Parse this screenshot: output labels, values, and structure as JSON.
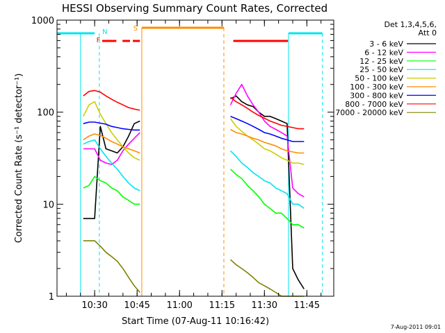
{
  "chart_data": {
    "type": "line",
    "title": "HESSI Observing Summary Count Rates, Corrected",
    "xlabel": "Start Time (07-Aug-11 10:16:42)",
    "ylabel": "Corrected Count Rate (s⁻¹ detector⁻¹)",
    "y_scale": "log",
    "ylim": [
      1,
      1000
    ],
    "xlim": [
      "10:16:42",
      "11:54:30"
    ],
    "x_ticks": [
      "10:30",
      "10:45",
      "11:00",
      "11:15",
      "11:30",
      "11:45"
    ],
    "y_ticks": [
      "1",
      "10",
      "100",
      "1000"
    ],
    "footer": "7-Aug-2011 09:01",
    "legend": {
      "header": [
        "Det 1,3,4,5,6,",
        "Att 0"
      ],
      "position": "right"
    },
    "flags": [
      {
        "label": "N",
        "color": "#00e5ee"
      },
      {
        "label": "F",
        "color": "#ff0000"
      },
      {
        "label": "S",
        "color": "#ff8c00"
      }
    ],
    "series": [
      {
        "name": "3 - 6 keV",
        "color": "#000000",
        "x": [
          "10:26",
          "10:28",
          "10:30",
          "10:32",
          "10:34",
          "10:36",
          "10:38",
          "10:40",
          "10:42",
          "10:44",
          "10:46",
          "11:18",
          "11:20",
          "11:22",
          "11:24",
          "11:26",
          "11:28",
          "11:30",
          "11:32",
          "11:34",
          "11:36",
          "11:38",
          "11:40",
          "11:42",
          "11:44"
        ],
        "y": [
          7,
          7,
          7,
          70,
          40,
          38,
          36,
          42,
          55,
          75,
          80,
          140,
          150,
          130,
          120,
          115,
          100,
          90,
          90,
          85,
          80,
          75,
          2,
          1.5,
          1.2
        ]
      },
      {
        "name": "6 - 12 keV",
        "color": "#ff00ff",
        "x": [
          "10:26",
          "10:28",
          "10:30",
          "10:32",
          "10:34",
          "10:36",
          "10:38",
          "10:40",
          "10:42",
          "10:44",
          "10:46",
          "11:18",
          "11:20",
          "11:22",
          "11:24",
          "11:26",
          "11:28",
          "11:30",
          "11:32",
          "11:34",
          "11:36",
          "11:38",
          "11:40",
          "11:42",
          "11:44"
        ],
        "y": [
          40,
          40,
          40,
          30,
          28,
          27,
          30,
          38,
          45,
          52,
          60,
          120,
          160,
          200,
          150,
          120,
          100,
          80,
          70,
          65,
          60,
          55,
          15,
          13,
          12
        ]
      },
      {
        "name": "12 - 25 keV",
        "color": "#00ff00",
        "x": [
          "10:26",
          "10:28",
          "10:30",
          "10:32",
          "10:34",
          "10:36",
          "10:38",
          "10:40",
          "10:42",
          "10:44",
          "10:46",
          "11:18",
          "11:20",
          "11:22",
          "11:24",
          "11:26",
          "11:28",
          "11:30",
          "11:32",
          "11:34",
          "11:36",
          "11:38",
          "11:40",
          "11:42",
          "11:44"
        ],
        "y": [
          15,
          16,
          20,
          18,
          17,
          15,
          14,
          12,
          11,
          10,
          10,
          24,
          21,
          19,
          16,
          14,
          12,
          10,
          9,
          8,
          8,
          7,
          6,
          6,
          5.5
        ]
      },
      {
        "name": "25 - 50 keV",
        "color": "#00e5ee",
        "x": [
          "10:26",
          "10:28",
          "10:30",
          "10:32",
          "10:34",
          "10:36",
          "10:38",
          "10:40",
          "10:42",
          "10:44",
          "10:46",
          "11:18",
          "11:20",
          "11:22",
          "11:24",
          "11:26",
          "11:28",
          "11:30",
          "11:32",
          "11:34",
          "11:36",
          "11:38",
          "11:40",
          "11:42",
          "11:44"
        ],
        "y": [
          45,
          48,
          50,
          40,
          33,
          28,
          24,
          20,
          17,
          15,
          14,
          38,
          33,
          28,
          25,
          22,
          20,
          18,
          17,
          15,
          14,
          13,
          10,
          10,
          9
        ]
      },
      {
        "name": "50 - 100 keV",
        "color": "#cccc00",
        "x": [
          "10:26",
          "10:28",
          "10:30",
          "10:32",
          "10:34",
          "10:36",
          "10:38",
          "10:40",
          "10:42",
          "10:44",
          "10:46",
          "11:18",
          "11:20",
          "11:22",
          "11:24",
          "11:26",
          "11:28",
          "11:30",
          "11:32",
          "11:34",
          "11:36",
          "11:38",
          "11:40",
          "11:42",
          "11:44"
        ],
        "y": [
          90,
          120,
          130,
          95,
          75,
          60,
          50,
          42,
          36,
          32,
          30,
          85,
          70,
          62,
          55,
          50,
          45,
          40,
          38,
          35,
          32,
          30,
          28,
          28,
          27
        ]
      },
      {
        "name": "100 - 300 keV",
        "color": "#ff8c00",
        "x": [
          "10:26",
          "10:28",
          "10:30",
          "10:32",
          "10:34",
          "10:36",
          "10:38",
          "10:40",
          "10:42",
          "10:44",
          "10:46",
          "11:18",
          "11:20",
          "11:22",
          "11:24",
          "11:26",
          "11:28",
          "11:30",
          "11:32",
          "11:34",
          "11:36",
          "11:38",
          "11:40",
          "11:42",
          "11:44"
        ],
        "y": [
          50,
          55,
          58,
          56,
          52,
          48,
          45,
          42,
          40,
          38,
          36,
          65,
          60,
          58,
          55,
          52,
          50,
          47,
          45,
          43,
          40,
          38,
          37,
          36,
          36
        ]
      },
      {
        "name": "300 - 800 keV",
        "color": "#0000ff",
        "x": [
          "10:26",
          "10:28",
          "10:30",
          "10:32",
          "10:34",
          "10:36",
          "10:38",
          "10:40",
          "10:42",
          "10:44",
          "10:46",
          "11:18",
          "11:20",
          "11:22",
          "11:24",
          "11:26",
          "11:28",
          "11:30",
          "11:32",
          "11:34",
          "11:36",
          "11:38",
          "11:40",
          "11:42",
          "11:44"
        ],
        "y": [
          75,
          78,
          78,
          76,
          74,
          70,
          68,
          66,
          65,
          64,
          64,
          90,
          85,
          80,
          75,
          70,
          65,
          60,
          58,
          55,
          52,
          50,
          48,
          48,
          48
        ]
      },
      {
        "name": "800 - 7000 keV",
        "color": "#ff0000",
        "x": [
          "10:26",
          "10:28",
          "10:30",
          "10:32",
          "10:34",
          "10:36",
          "10:38",
          "10:40",
          "10:42",
          "10:44",
          "10:46",
          "11:18",
          "11:20",
          "11:22",
          "11:24",
          "11:26",
          "11:28",
          "11:30",
          "11:32",
          "11:34",
          "11:36",
          "11:38",
          "11:40",
          "11:42",
          "11:44"
        ],
        "y": [
          150,
          168,
          172,
          165,
          150,
          138,
          128,
          120,
          112,
          108,
          105,
          145,
          130,
          120,
          110,
          100,
          92,
          86,
          80,
          76,
          72,
          70,
          68,
          66,
          66
        ]
      },
      {
        "name": "7000 - 20000 keV",
        "color": "#808000",
        "x": [
          "10:26",
          "10:28",
          "10:30",
          "10:32",
          "10:34",
          "10:36",
          "10:38",
          "10:40",
          "10:42",
          "10:44",
          "10:46",
          "11:18",
          "11:20",
          "11:22",
          "11:24",
          "11:26",
          "11:28",
          "11:30",
          "11:32",
          "11:34",
          "11:36",
          "11:38",
          "11:40",
          "11:42",
          "11:44"
        ],
        "y": [
          4,
          4,
          4,
          3.5,
          3,
          2.7,
          2.4,
          2,
          1.6,
          1.3,
          1.1,
          2.5,
          2.2,
          2,
          1.8,
          1.6,
          1.4,
          1.3,
          1.2,
          1.1,
          1,
          1,
          1,
          1,
          1
        ]
      }
    ]
  }
}
